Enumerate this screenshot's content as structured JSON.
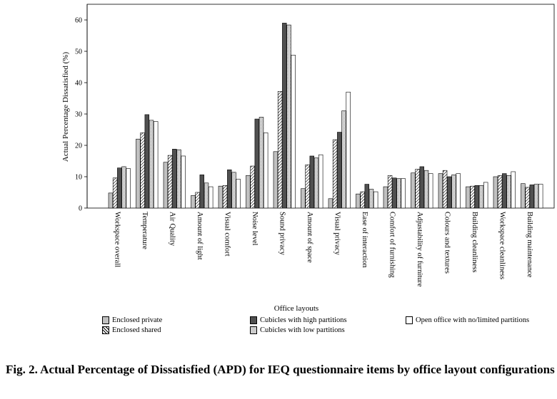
{
  "chart_data": {
    "type": "bar",
    "ylabel": "Actual Percentage Dissatisfied (%)",
    "xlabel": "Office layouts",
    "ylim": [
      0,
      65
    ],
    "yticks": [
      0,
      10,
      20,
      30,
      40,
      50,
      60
    ],
    "categories": [
      "Workspace overall",
      "Temperature",
      "Air Quality",
      "Amount of light",
      "Visual comfort",
      "Noise level",
      "Sound privacy",
      "Amount of space",
      "Visual privacy",
      "Ease of interaction",
      "Comfort of furnishing",
      "Adjustability of furniture",
      "Colours and textures",
      "Building cleanliness",
      "Workspace cleanliness",
      "Building maintenance"
    ],
    "series": [
      {
        "name": "Enclosed private",
        "color": "#c0c0c0",
        "pattern": "solid",
        "values": [
          4.8,
          22.0,
          14.6,
          4.0,
          7.0,
          10.4,
          18.0,
          6.2,
          3.0,
          4.5,
          6.8,
          11.2,
          11.0,
          6.8,
          10.0,
          7.8
        ]
      },
      {
        "name": "Enclosed shared",
        "color": "#ffffff",
        "pattern": "diagonal",
        "values": [
          9.6,
          24.0,
          16.8,
          5.0,
          7.2,
          13.4,
          37.2,
          13.8,
          21.8,
          5.2,
          10.4,
          12.4,
          12.0,
          7.0,
          10.4,
          6.6
        ]
      },
      {
        "name": "Cubicles with high partitions",
        "color": "#505050",
        "pattern": "solid",
        "values": [
          12.8,
          29.8,
          18.8,
          10.6,
          12.2,
          28.4,
          59.0,
          16.6,
          24.2,
          7.6,
          9.6,
          13.2,
          10.0,
          7.2,
          11.0,
          7.4
        ]
      },
      {
        "name": "Cubicles with low partitions",
        "color": "#e0e0e0",
        "pattern": "dots",
        "values": [
          13.2,
          28.0,
          18.6,
          8.0,
          11.4,
          29.0,
          58.4,
          16.0,
          31.0,
          6.0,
          9.4,
          12.0,
          10.6,
          7.2,
          10.4,
          7.6
        ]
      },
      {
        "name": "Open office with no/limited partitions",
        "color": "#ffffff",
        "pattern": "solid",
        "values": [
          12.6,
          27.6,
          16.6,
          6.8,
          9.2,
          24.0,
          48.8,
          17.0,
          37.0,
          5.2,
          9.4,
          11.0,
          11.0,
          8.2,
          11.6,
          7.6
        ]
      }
    ],
    "grid": false,
    "legend_position": "bottom"
  },
  "caption": "Fig. 2. Actual Percentage of Dissatisfied (APD) for IEQ questionnaire items by office layout configurations"
}
